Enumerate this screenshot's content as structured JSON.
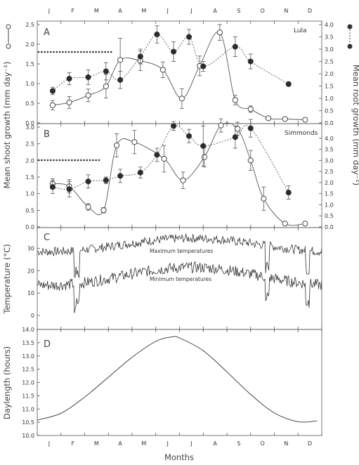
{
  "months": [
    "J",
    "F",
    "M",
    "A",
    "M",
    "J",
    "J",
    "A",
    "S",
    "O",
    "N",
    "D"
  ],
  "x_axis_label": "Months",
  "left_axis_label": "Mean shoot growth (mm day⁻¹)",
  "right_axis_label": "Mean root growth (mm day⁻¹)",
  "temperature_axis_label": "Temperature (°C)",
  "daylength_axis_label": "Daylength (hours)",
  "chart_data": [
    {
      "panel": "A",
      "type": "line",
      "cultivar": "Lula",
      "shoot_ylim": [
        0,
        2.5
      ],
      "shoot_ticks": [
        "0.0",
        "0.5",
        "1.0",
        "1.5",
        "2.0",
        "2.5"
      ],
      "root_ylim": [
        0,
        4.0
      ],
      "root_ticks": [
        "0.0",
        "0.5",
        "1.0",
        "1.5",
        "2.0",
        "2.5",
        "3.0",
        "3.5",
        "4.0"
      ],
      "dormancy_bar_months": [
        0.0,
        3.1
      ],
      "series": [
        {
          "legend_symbol": "open circle, solid line",
          "axis": "left",
          "x": [
            0.65,
            1.35,
            2.15,
            2.9,
            3.5,
            4.35,
            5.3,
            6.1,
            6.85,
            7.7,
            8.35,
            9.0,
            9.75,
            10.45,
            11.3
          ],
          "y": [
            0.45,
            0.52,
            0.7,
            0.93,
            1.6,
            1.58,
            1.35,
            0.62,
            1.45,
            2.3,
            0.58,
            0.35,
            0.12,
            0.1,
            0.08
          ],
          "err": [
            0.12,
            0.15,
            0.16,
            0.3,
            0.55,
            0.25,
            0.2,
            0.25,
            0.25,
            0.2,
            0.12,
            0.08,
            0.04,
            0.04,
            0.04
          ]
        },
        {
          "legend_symbol": "filled circle, dotted line",
          "axis": "right",
          "x": [
            0.65,
            1.35,
            2.15,
            2.9,
            3.5,
            4.35,
            5.05,
            5.75,
            6.4,
            7.0,
            8.35,
            9.0,
            10.6
          ],
          "y": [
            1.3,
            1.8,
            1.86,
            2.1,
            1.75,
            2.7,
            3.6,
            2.9,
            3.5,
            2.3,
            3.1,
            2.5,
            1.58
          ],
          "err": [
            0.15,
            0.25,
            0.3,
            0.35,
            0.35,
            0.3,
            0.35,
            0.4,
            0.3,
            0.2,
            0.4,
            0.3,
            0.08
          ]
        }
      ]
    },
    {
      "panel": "B",
      "type": "line",
      "cultivar": "Simmonds",
      "shoot_ylim": [
        0,
        3.0
      ],
      "shoot_ticks": [
        "0.0",
        "0.5",
        "1.0",
        "1.5",
        "2.0",
        "2.5",
        "3.0"
      ],
      "root_ylim": [
        0,
        4.5
      ],
      "root_ticks": [
        "0.0",
        "0.5",
        "1.0",
        "1.5",
        "2.0",
        "2.5",
        "3.0",
        "3.5",
        "4.0"
      ],
      "dormancy_bar_months": [
        0.0,
        2.65
      ],
      "series": [
        {
          "legend_symbol": "open circle, solid line",
          "axis": "left",
          "x": [
            0.65,
            1.35,
            2.15,
            2.8,
            3.35,
            4.1,
            5.35,
            6.15,
            7.05,
            7.75,
            8.45,
            9.0,
            9.55,
            10.45,
            11.3
          ],
          "y": [
            1.3,
            1.22,
            0.6,
            0.5,
            2.45,
            2.55,
            2.05,
            1.4,
            2.1,
            3.05,
            2.95,
            2.0,
            0.85,
            0.1,
            0.1
          ],
          "err": [
            0.15,
            0.2,
            0.1,
            0.08,
            0.35,
            0.35,
            0.4,
            0.25,
            0.3,
            0.2,
            0.2,
            0.3,
            0.35,
            0.04,
            0.04
          ]
        },
        {
          "legend_symbol": "filled circle, dotted line",
          "axis": "right",
          "x": [
            0.65,
            1.35,
            2.15,
            2.9,
            3.5,
            4.35,
            5.05,
            5.75,
            6.4,
            7.0,
            8.35,
            9.0,
            10.6
          ],
          "y": [
            1.8,
            1.7,
            2.05,
            2.1,
            2.3,
            2.45,
            3.25,
            4.55,
            4.1,
            3.65,
            4.05,
            4.45,
            1.55
          ],
          "err": [
            0.3,
            0.35,
            0.3,
            0.15,
            0.3,
            0.25,
            0.3,
            0.2,
            0.3,
            0.9,
            0.5,
            0.4,
            0.3
          ]
        }
      ]
    },
    {
      "panel": "C",
      "type": "line",
      "ylabel": "Temperature (°C)",
      "ylim": [
        -5,
        38
      ],
      "y_ticks": [
        "0",
        "10",
        "20",
        "30"
      ],
      "max_label": "Maximum temperatures",
      "min_label": "Minimum temperatures"
    },
    {
      "panel": "D",
      "type": "line",
      "ylabel": "Daylength (hours)",
      "ylim": [
        10.0,
        14.0
      ],
      "y_ticks": [
        "10.0",
        "10.5",
        "11.0",
        "11.5",
        "12.0",
        "12.5",
        "13.0",
        "13.5",
        "14.0"
      ],
      "x": [
        0.0,
        1.0,
        2.0,
        3.0,
        4.0,
        5.0,
        5.7,
        6.0,
        7.0,
        8.0,
        9.0,
        10.0,
        11.0,
        11.8
      ],
      "y": [
        10.58,
        10.84,
        11.45,
        12.2,
        12.95,
        13.55,
        13.72,
        13.68,
        13.2,
        12.4,
        11.55,
        10.85,
        10.52,
        10.55
      ]
    }
  ]
}
